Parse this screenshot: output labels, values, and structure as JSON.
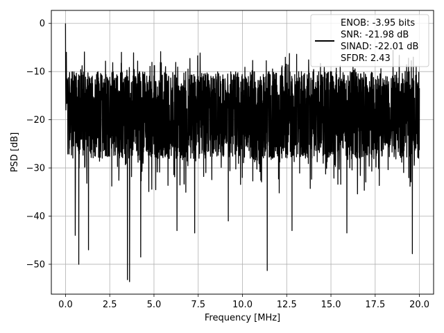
{
  "chart_data": {
    "type": "line",
    "title": "",
    "xlabel": "Frequency [MHz]",
    "ylabel": "PSD [dB]",
    "xlim": [
      -0.8,
      20.8
    ],
    "ylim": [
      -56.2,
      2.7
    ],
    "xticks": [
      0.0,
      2.5,
      5.0,
      7.5,
      10.0,
      12.5,
      15.0,
      17.5,
      20.0
    ],
    "xtick_labels": [
      "0.0",
      "2.5",
      "5.0",
      "7.5",
      "10.0",
      "12.5",
      "15.0",
      "17.5",
      "20.0"
    ],
    "yticks": [
      0,
      -10,
      -20,
      -30,
      -40,
      -50
    ],
    "ytick_labels": [
      "0",
      "−10",
      "−20",
      "−30",
      "−40",
      "−50"
    ],
    "grid": true,
    "line_color": "#000000",
    "legend": {
      "placement": "top-right",
      "entries": [
        "ENOB: -3.95 bits",
        "SNR: -21.98 dB",
        "SINAD: -22.01 dB",
        "SFDR: 2.43"
      ]
    },
    "series": [
      {
        "x_range": [
          0,
          20
        ],
        "envelope_upper": -8,
        "envelope_lower": -30,
        "typical_center": -18,
        "peaks": [
          {
            "x": 0.0,
            "y": 0.0
          },
          {
            "x": 0.05,
            "y": -6.0
          }
        ],
        "dips": [
          {
            "x": 0.55,
            "y": -44.0
          },
          {
            "x": 0.75,
            "y": -50.0
          },
          {
            "x": 1.3,
            "y": -47.0
          },
          {
            "x": 3.5,
            "y": -53.2
          },
          {
            "x": 3.62,
            "y": -53.6
          },
          {
            "x": 4.25,
            "y": -48.5
          },
          {
            "x": 6.3,
            "y": -43.0
          },
          {
            "x": 7.3,
            "y": -43.5
          },
          {
            "x": 9.2,
            "y": -41.0
          },
          {
            "x": 11.4,
            "y": -51.3
          },
          {
            "x": 12.8,
            "y": -43.0
          },
          {
            "x": 15.9,
            "y": -43.5
          },
          {
            "x": 19.6,
            "y": -47.8
          }
        ]
      }
    ]
  }
}
